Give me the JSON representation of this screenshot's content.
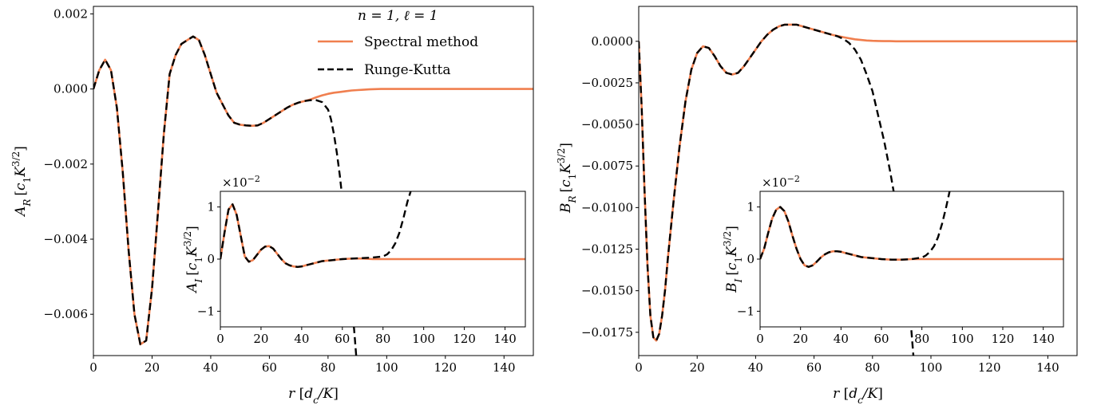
{
  "figure": {
    "legend": {
      "title": "n = 1,  ℓ = 1",
      "entries": [
        {
          "label": "Spectral method",
          "color": "#f07f4f",
          "style": "solid"
        },
        {
          "label": "Runge-Kutta",
          "color": "#000000",
          "style": "dashed"
        }
      ]
    }
  },
  "chart_data": [
    {
      "type": "line",
      "panel": "left-main",
      "xlabel": "r [d_c/K]",
      "ylabel": "A_R [c_1 K^{3/2}]",
      "xlim": [
        0,
        150
      ],
      "ylim": [
        -0.0071,
        0.0022
      ],
      "xticks": [
        0,
        20,
        40,
        60,
        80,
        100,
        120,
        140
      ],
      "xtick_labels": [
        "0",
        "20",
        "40",
        "60",
        "80",
        "100",
        "120",
        "140"
      ],
      "yticks": [
        0.002,
        0.0,
        -0.002,
        -0.004,
        -0.006
      ],
      "ytick_labels": [
        "0.002",
        "0.000",
        "−0.002",
        "−0.004",
        "−0.006"
      ],
      "legend_position": "top-right",
      "series": [
        {
          "name": "Spectral method",
          "color": "#f07f4f",
          "dash": "solid",
          "x": [
            0,
            2,
            4,
            6,
            8,
            10,
            12,
            14,
            16,
            18,
            20,
            22,
            24,
            26,
            28,
            30,
            32,
            34,
            36,
            38,
            40,
            42,
            44,
            46,
            48,
            50,
            52,
            54,
            56,
            58,
            60,
            62,
            64,
            66,
            68,
            70,
            72,
            74,
            76,
            78,
            80,
            82,
            84,
            86,
            88,
            90,
            92,
            94,
            96,
            98,
            100,
            105,
            110,
            115,
            120,
            130,
            140,
            150
          ],
          "y": [
            0.0,
            0.0005,
            0.00078,
            0.0005,
            -0.0005,
            -0.0022,
            -0.0043,
            -0.006,
            -0.0068,
            -0.0067,
            -0.0053,
            -0.0033,
            -0.0012,
            0.0004,
            0.0009,
            0.0012,
            0.0013,
            0.0014,
            0.0013,
            0.0009,
            0.0004,
            -0.0001,
            -0.0004,
            -0.0007,
            -0.0009,
            -0.00095,
            -0.00097,
            -0.00098,
            -0.00097,
            -0.0009,
            -0.0008,
            -0.0007,
            -0.0006,
            -0.0005,
            -0.00042,
            -0.00036,
            -0.00032,
            -0.00028,
            -0.00022,
            -0.00017,
            -0.00013,
            -0.0001,
            -8e-05,
            -6e-05,
            -4e-05,
            -3e-05,
            -2e-05,
            -1e-05,
            -5e-06,
            0.0,
            0.0,
            0.0,
            0.0,
            0.0,
            0.0,
            0.0,
            0.0,
            0.0
          ]
        },
        {
          "name": "Runge-Kutta",
          "color": "#000000",
          "dash": "dashed",
          "x": [
            0,
            2,
            4,
            6,
            8,
            10,
            12,
            14,
            16,
            18,
            20,
            22,
            24,
            26,
            28,
            30,
            32,
            34,
            36,
            38,
            40,
            42,
            44,
            46,
            48,
            50,
            52,
            54,
            56,
            58,
            60,
            62,
            64,
            66,
            68,
            70,
            72,
            74,
            76,
            78,
            80,
            81,
            82,
            83,
            84,
            85,
            86,
            87,
            88,
            89,
            90
          ],
          "y": [
            0.0,
            0.0005,
            0.00078,
            0.0005,
            -0.0005,
            -0.0022,
            -0.0043,
            -0.006,
            -0.0068,
            -0.0067,
            -0.0053,
            -0.0033,
            -0.0012,
            0.0004,
            0.0009,
            0.0012,
            0.0013,
            0.0014,
            0.0013,
            0.0009,
            0.0004,
            -0.0001,
            -0.0004,
            -0.0007,
            -0.0009,
            -0.00095,
            -0.00097,
            -0.00098,
            -0.00097,
            -0.0009,
            -0.0008,
            -0.0007,
            -0.0006,
            -0.0005,
            -0.00042,
            -0.00036,
            -0.00032,
            -0.0003,
            -0.0003,
            -0.00035,
            -0.00055,
            -0.0008,
            -0.0012,
            -0.0017,
            -0.0023,
            -0.003,
            -0.0038,
            -0.0047,
            -0.0056,
            -0.0065,
            -0.0075
          ]
        }
      ]
    },
    {
      "type": "line",
      "panel": "left-inset",
      "xlabel": "",
      "ylabel": "A_I [c_1 K^{3/2}]",
      "offset_label": "×10^{-2}",
      "xlim": [
        0,
        150
      ],
      "ylim": [
        -1.3,
        1.3
      ],
      "xticks": [
        0,
        20,
        40,
        60,
        80,
        100,
        120,
        140
      ],
      "xtick_labels": [
        "0",
        "20",
        "40",
        "60",
        "80",
        "100",
        "120",
        "140"
      ],
      "yticks": [
        1,
        0,
        -1
      ],
      "ytick_labels": [
        "1",
        "0",
        "−1"
      ],
      "series": [
        {
          "name": "Spectral method",
          "color": "#f07f4f",
          "dash": "solid",
          "x": [
            0,
            2,
            4,
            6,
            8,
            10,
            12,
            14,
            16,
            18,
            20,
            22,
            24,
            26,
            28,
            30,
            32,
            34,
            36,
            38,
            40,
            42,
            44,
            46,
            48,
            50,
            55,
            60,
            65,
            70,
            75,
            80,
            85,
            90,
            100,
            110,
            120,
            130,
            140,
            150
          ],
          "y": [
            0.0,
            0.5,
            0.95,
            1.05,
            0.85,
            0.45,
            0.05,
            -0.05,
            -0.02,
            0.08,
            0.18,
            0.24,
            0.25,
            0.2,
            0.1,
            0.0,
            -0.08,
            -0.12,
            -0.14,
            -0.15,
            -0.14,
            -0.12,
            -0.1,
            -0.08,
            -0.06,
            -0.04,
            -0.02,
            0.0,
            0.01,
            0.01,
            0.0,
            0.0,
            0.0,
            0.0,
            0.0,
            0.0,
            0.0,
            0.0,
            0.0,
            0.0
          ]
        },
        {
          "name": "Runge-Kutta",
          "color": "#000000",
          "dash": "dashed",
          "x": [
            0,
            2,
            4,
            6,
            8,
            10,
            12,
            14,
            16,
            18,
            20,
            22,
            24,
            26,
            28,
            30,
            32,
            34,
            36,
            38,
            40,
            42,
            44,
            46,
            48,
            50,
            55,
            60,
            65,
            70,
            75,
            80,
            82,
            84,
            86,
            88,
            90,
            92,
            94
          ],
          "y": [
            0.0,
            0.5,
            0.95,
            1.05,
            0.85,
            0.45,
            0.05,
            -0.05,
            -0.02,
            0.08,
            0.18,
            0.24,
            0.25,
            0.2,
            0.1,
            0.0,
            -0.08,
            -0.12,
            -0.14,
            -0.15,
            -0.14,
            -0.12,
            -0.1,
            -0.08,
            -0.06,
            -0.04,
            -0.02,
            0.0,
            0.01,
            0.02,
            0.03,
            0.05,
            0.09,
            0.17,
            0.3,
            0.5,
            0.78,
            1.1,
            1.35
          ]
        }
      ]
    },
    {
      "type": "line",
      "panel": "right-main",
      "xlabel": "r [d_c/K]",
      "ylabel": "B_R [c_1 K^{3/2}]",
      "xlim": [
        0,
        150
      ],
      "ylim": [
        -0.0189,
        0.0021
      ],
      "xticks": [
        0,
        20,
        40,
        60,
        80,
        100,
        120,
        140
      ],
      "xtick_labels": [
        "0",
        "20",
        "40",
        "60",
        "80",
        "100",
        "120",
        "140"
      ],
      "yticks": [
        0.0,
        -0.0025,
        -0.005,
        -0.0075,
        -0.01,
        -0.0125,
        -0.015,
        -0.0175
      ],
      "ytick_labels": [
        "0.0000",
        "−0.0025",
        "−0.0050",
        "−0.0075",
        "−0.0100",
        "−0.0125",
        "−0.0150",
        "−0.0175"
      ],
      "series": [
        {
          "name": "Spectral method",
          "color": "#f07f4f",
          "dash": "solid",
          "x": [
            0,
            1,
            2,
            3,
            4,
            5,
            6,
            7,
            8,
            9,
            10,
            12,
            14,
            16,
            18,
            20,
            22,
            24,
            26,
            28,
            30,
            32,
            34,
            36,
            38,
            40,
            42,
            44,
            46,
            48,
            50,
            52,
            54,
            56,
            58,
            60,
            62,
            64,
            66,
            68,
            70,
            72,
            74,
            76,
            78,
            80,
            82,
            84,
            86,
            88,
            90,
            95,
            100,
            110,
            120,
            130,
            140,
            150
          ],
          "y": [
            0.0,
            -0.004,
            -0.009,
            -0.0135,
            -0.0165,
            -0.0178,
            -0.018,
            -0.0176,
            -0.0165,
            -0.015,
            -0.013,
            -0.0095,
            -0.0063,
            -0.0036,
            -0.0017,
            -0.0007,
            -0.0003,
            -0.0004,
            -0.0009,
            -0.0015,
            -0.0019,
            -0.002,
            -0.0019,
            -0.0015,
            -0.001,
            -0.0005,
            0.0,
            0.0004,
            0.0007,
            0.0009,
            0.001,
            0.001,
            0.001,
            0.0009,
            0.0008,
            0.0007,
            0.0006,
            0.0005,
            0.0004,
            0.00032,
            0.00025,
            0.00018,
            0.00012,
            8e-05,
            5e-05,
            3e-05,
            2e-05,
            1e-05,
            1e-05,
            0.0,
            0.0,
            0.0,
            0.0,
            0.0,
            0.0,
            0.0,
            0.0,
            0.0
          ]
        },
        {
          "name": "Runge-Kutta",
          "color": "#000000",
          "dash": "dashed",
          "x": [
            0,
            1,
            2,
            3,
            4,
            5,
            6,
            7,
            8,
            9,
            10,
            12,
            14,
            16,
            18,
            20,
            22,
            24,
            26,
            28,
            30,
            32,
            34,
            36,
            38,
            40,
            42,
            44,
            46,
            48,
            50,
            52,
            54,
            56,
            58,
            60,
            62,
            64,
            66,
            68,
            70,
            72,
            74,
            76,
            78,
            80,
            82,
            84,
            86,
            88,
            90,
            92,
            94
          ],
          "y": [
            0.0,
            -0.004,
            -0.009,
            -0.0135,
            -0.0165,
            -0.0178,
            -0.018,
            -0.0176,
            -0.0165,
            -0.015,
            -0.013,
            -0.0095,
            -0.0063,
            -0.0036,
            -0.0017,
            -0.0007,
            -0.0003,
            -0.0004,
            -0.0009,
            -0.0015,
            -0.0019,
            -0.002,
            -0.0019,
            -0.0015,
            -0.001,
            -0.0005,
            0.0,
            0.0004,
            0.0007,
            0.0009,
            0.001,
            0.001,
            0.001,
            0.0009,
            0.0008,
            0.0007,
            0.0006,
            0.0005,
            0.0004,
            0.0003,
            0.00015,
            -0.0001,
            -0.0005,
            -0.0011,
            -0.002,
            -0.003,
            -0.0045,
            -0.006,
            -0.0078,
            -0.0098,
            -0.012,
            -0.0145,
            -0.0189
          ]
        }
      ]
    },
    {
      "type": "line",
      "panel": "right-inset",
      "xlabel": "",
      "ylabel": "B_I [c_1 K^{3/2}]",
      "offset_label": "×10^{-2}",
      "xlim": [
        0,
        150
      ],
      "ylim": [
        -1.3,
        1.3
      ],
      "xticks": [
        0,
        20,
        40,
        60,
        80,
        100,
        120,
        140
      ],
      "xtick_labels": [
        "0",
        "20",
        "40",
        "60",
        "80",
        "100",
        "120",
        "140"
      ],
      "yticks": [
        1,
        0,
        -1
      ],
      "ytick_labels": [
        "1",
        "0",
        "−1"
      ],
      "series": [
        {
          "name": "Spectral method",
          "color": "#f07f4f",
          "dash": "solid",
          "x": [
            0,
            2,
            4,
            6,
            8,
            10,
            12,
            14,
            16,
            18,
            20,
            22,
            24,
            26,
            28,
            30,
            32,
            34,
            36,
            38,
            40,
            42,
            44,
            46,
            48,
            50,
            55,
            60,
            65,
            70,
            75,
            80,
            90,
            100,
            110,
            120,
            130,
            140,
            150
          ],
          "y": [
            0.0,
            0.2,
            0.5,
            0.78,
            0.95,
            1.0,
            0.92,
            0.72,
            0.45,
            0.2,
            0.0,
            -0.12,
            -0.15,
            -0.12,
            -0.05,
            0.03,
            0.09,
            0.13,
            0.15,
            0.15,
            0.14,
            0.12,
            0.1,
            0.08,
            0.06,
            0.04,
            0.02,
            0.0,
            -0.01,
            -0.01,
            0.0,
            0.0,
            0.0,
            0.0,
            0.0,
            0.0,
            0.0,
            0.0,
            0.0
          ]
        },
        {
          "name": "Runge-Kutta",
          "color": "#000000",
          "dash": "dashed",
          "x": [
            0,
            2,
            4,
            6,
            8,
            10,
            12,
            14,
            16,
            18,
            20,
            22,
            24,
            26,
            28,
            30,
            32,
            34,
            36,
            38,
            40,
            42,
            44,
            46,
            48,
            50,
            55,
            60,
            65,
            70,
            75,
            80,
            82,
            84,
            86,
            88,
            90,
            92,
            94
          ],
          "y": [
            0.0,
            0.2,
            0.5,
            0.78,
            0.95,
            1.0,
            0.92,
            0.72,
            0.45,
            0.2,
            0.0,
            -0.12,
            -0.15,
            -0.12,
            -0.05,
            0.03,
            0.09,
            0.13,
            0.15,
            0.15,
            0.14,
            0.12,
            0.1,
            0.08,
            0.06,
            0.04,
            0.02,
            0.0,
            -0.01,
            -0.01,
            0.0,
            0.03,
            0.07,
            0.14,
            0.25,
            0.42,
            0.68,
            1.0,
            1.35
          ]
        }
      ]
    }
  ]
}
